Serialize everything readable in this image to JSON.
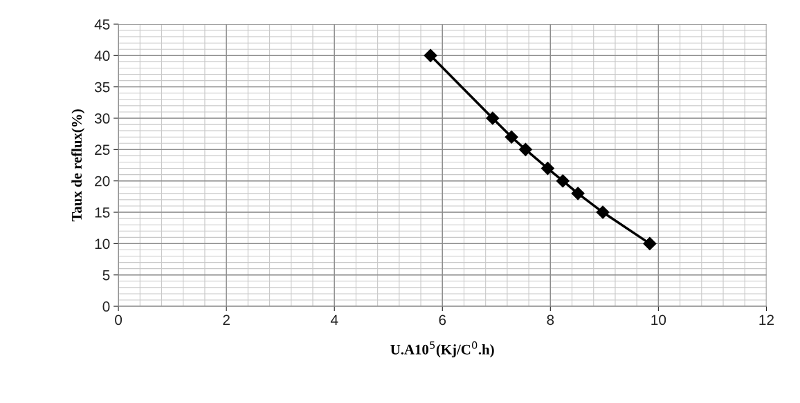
{
  "chart_data": {
    "type": "line",
    "xlabel": "U.A10$^{5}$(Kj/C$^{0}$.h)",
    "ylabel": "Taux de reflux(%)",
    "series": [
      {
        "color": "#000000",
        "x": [
          5.78,
          6.93,
          7.28,
          7.54,
          7.95,
          8.23,
          8.51,
          8.97,
          9.84
        ],
        "values": [
          40,
          30,
          27,
          25,
          22,
          20,
          18,
          15,
          10
        ]
      }
    ],
    "xlim": [
      0,
      12
    ],
    "xticks": [
      0,
      2,
      4,
      6,
      8,
      10,
      12
    ],
    "ylim": [
      0,
      45
    ],
    "yticks": [
      0,
      5,
      10,
      15,
      20,
      25,
      30,
      35,
      40,
      45
    ],
    "grid": true,
    "marker": "diamond",
    "line_style": "solid",
    "legend": false
  }
}
